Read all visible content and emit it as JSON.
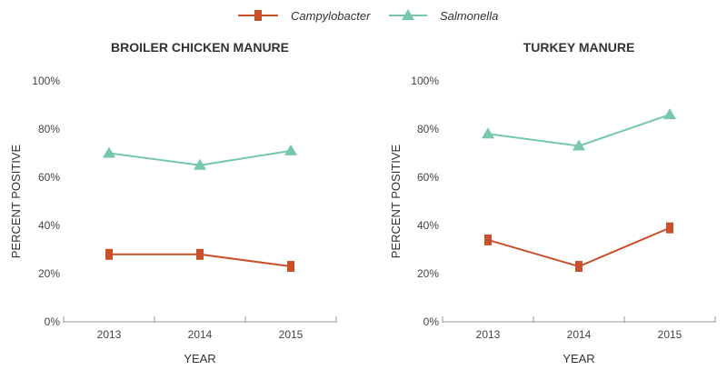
{
  "legend": {
    "items": [
      {
        "label": "Campylobacter",
        "color": "#c9502a",
        "marker": "square"
      },
      {
        "label": "Salmonella",
        "color": "#76c7ad",
        "marker": "triangle"
      }
    ]
  },
  "chart_data": [
    {
      "type": "line",
      "title": "BROILER CHICKEN MANURE",
      "xlabel": "YEAR",
      "ylabel": "PERCENT POSITIVE",
      "categories": [
        "2013",
        "2014",
        "2015"
      ],
      "ylim": [
        0,
        100
      ],
      "yticks": [
        "0%",
        "20%",
        "40%",
        "60%",
        "80%",
        "100%"
      ],
      "series": [
        {
          "name": "Campylobacter",
          "values": [
            28,
            28,
            23
          ]
        },
        {
          "name": "Salmonella",
          "values": [
            70,
            65,
            71
          ]
        }
      ]
    },
    {
      "type": "line",
      "title": "TURKEY MANURE",
      "xlabel": "YEAR",
      "ylabel": "PERCENT POSITIVE",
      "categories": [
        "2013",
        "2014",
        "2015"
      ],
      "ylim": [
        0,
        100
      ],
      "yticks": [
        "0%",
        "20%",
        "40%",
        "60%",
        "80%",
        "100%"
      ],
      "series": [
        {
          "name": "Campylobacter",
          "values": [
            34,
            23,
            39
          ]
        },
        {
          "name": "Salmonella",
          "values": [
            78,
            73,
            86
          ]
        }
      ]
    }
  ]
}
